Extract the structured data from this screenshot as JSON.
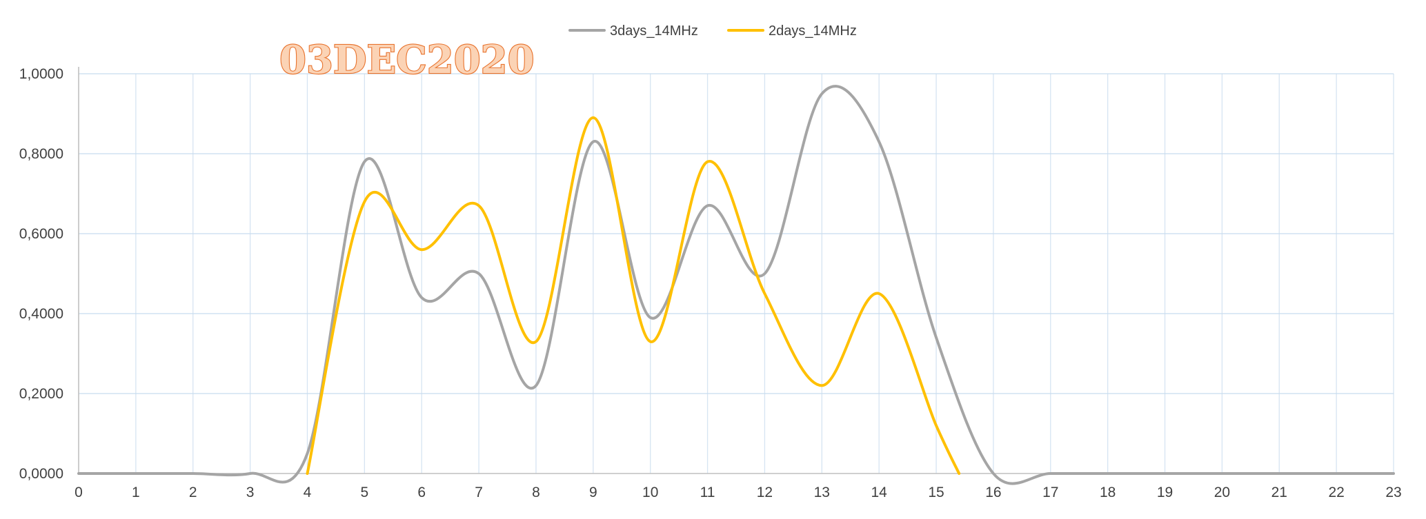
{
  "chart_data": {
    "type": "line",
    "title": "03DEC2020",
    "xlabel": "",
    "ylabel": "",
    "xlim": [
      0,
      23
    ],
    "ylim": [
      0,
      1
    ],
    "x_ticks": [
      "0",
      "1",
      "2",
      "3",
      "4",
      "5",
      "6",
      "7",
      "8",
      "9",
      "10",
      "11",
      "12",
      "13",
      "14",
      "15",
      "16",
      "17",
      "18",
      "19",
      "20",
      "21",
      "22",
      "23"
    ],
    "y_ticks": [
      "0,0000",
      "0,2000",
      "0,4000",
      "0,6000",
      "0,8000",
      "1,0000"
    ],
    "grid": true,
    "legend_position": "top",
    "smooth": true,
    "series": [
      {
        "name": "3days_14MHz",
        "color": "#a5a5a5",
        "points": [
          [
            0,
            0
          ],
          [
            1,
            0
          ],
          [
            2,
            0
          ],
          [
            3,
            0
          ],
          [
            4,
            0.05
          ],
          [
            5,
            0.78
          ],
          [
            6,
            0.44
          ],
          [
            7,
            0.5
          ],
          [
            8,
            0.22
          ],
          [
            9,
            0.83
          ],
          [
            10,
            0.39
          ],
          [
            11,
            0.67
          ],
          [
            12,
            0.5
          ],
          [
            13,
            0.95
          ],
          [
            14,
            0.83
          ],
          [
            15,
            0.34
          ],
          [
            16,
            0
          ],
          [
            17,
            0
          ],
          [
            18,
            0
          ],
          [
            19,
            0
          ],
          [
            20,
            0
          ],
          [
            21,
            0
          ],
          [
            22,
            0
          ],
          [
            23,
            0
          ]
        ]
      },
      {
        "name": "2days_14MHz",
        "color": "#ffc000",
        "points": [
          [
            4,
            0
          ],
          [
            5,
            0.68
          ],
          [
            6,
            0.56
          ],
          [
            7,
            0.67
          ],
          [
            8,
            0.33
          ],
          [
            9,
            0.89
          ],
          [
            10,
            0.33
          ],
          [
            11,
            0.78
          ],
          [
            12,
            0.45
          ],
          [
            13,
            0.22
          ],
          [
            14,
            0.45
          ],
          [
            15,
            0.12
          ],
          [
            15.4,
            0
          ]
        ]
      }
    ]
  }
}
